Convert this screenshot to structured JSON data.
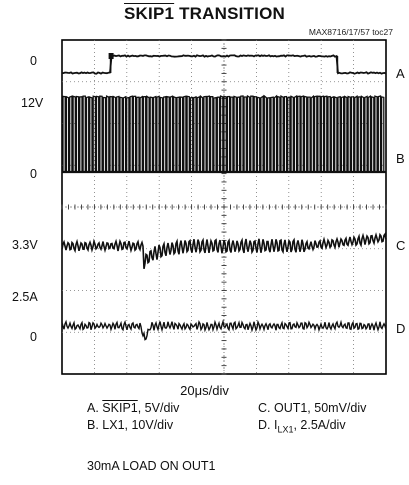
{
  "chart_data": {
    "type": "line",
    "title": "SKIP1 TRANSITION",
    "title_overline": "SKIP1",
    "title_rest": " TRANSITION",
    "ref": "MAX8716/17/57 toc27",
    "timebase": "20μs/div",
    "x_divisions": 10,
    "y_divisions": 8,
    "grid": true,
    "y_labels": [
      "0",
      "12V",
      "0",
      "3.3V",
      "2.5A",
      "0"
    ],
    "channels": [
      {
        "id": "A",
        "label": "A",
        "name_overline": "SKIP1",
        "name_rest": ", 5V/div",
        "scale": "5V/div"
      },
      {
        "id": "B",
        "label": "B",
        "name": "LX1",
        "name_rest": ", 10V/div",
        "scale": "10V/div"
      },
      {
        "id": "C",
        "label": "C",
        "name": "OUT1",
        "name_rest": ", 50mV/div",
        "scale": "50mV/div"
      },
      {
        "id": "D",
        "label": "D",
        "name": "I",
        "name_sub": "LX1",
        "name_rest": ", 2.5A/div",
        "scale": "2.5A/div"
      }
    ],
    "legend": {
      "a_prefix": "A. ",
      "a_overline": "SKIP1",
      "a_rest": ", 5V/div",
      "b": "B. LX1, 10V/div",
      "c": "C. OUT1, 50mV/div",
      "d_prefix": "D. I",
      "d_sub": "LX1",
      "d_rest": ", 2.5A/div"
    },
    "note": "30mA LOAD ON OUT1",
    "skip1_high_start_div": 1.5,
    "skip1_high_end_div": 8.5
  },
  "colors": {
    "trace": "#111111",
    "grid": "#777777",
    "frame": "#000000"
  }
}
